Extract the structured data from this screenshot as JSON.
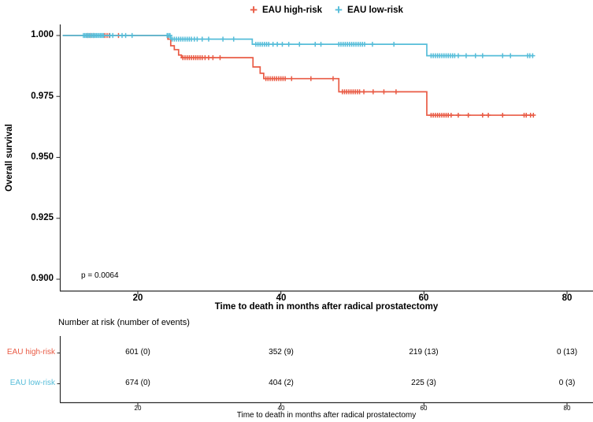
{
  "legend": {
    "items": [
      {
        "label": "EAU high-risk",
        "symbol": "+",
        "color": "#E95B45"
      },
      {
        "label": "EAU low-risk",
        "symbol": "+",
        "color": "#56BDD9"
      }
    ]
  },
  "chart_data": {
    "type": "line",
    "subtype": "kaplan-meier-step",
    "title": "",
    "xlabel": "Time to death in months after radical prostatectomy",
    "ylabel": "Overall survival",
    "xlim": [
      9,
      84
    ],
    "ylim": [
      0.896,
      1.004
    ],
    "x_ticks": [
      20,
      40,
      60,
      80
    ],
    "y_ticks": [
      "1.000",
      "0.975",
      "0.950",
      "0.925",
      "0.900"
    ],
    "grid": "off",
    "legend_position": "top",
    "p_value": "p = 0.0064",
    "series": [
      {
        "name": "EAU high-risk",
        "color": "#E95B45",
        "steps": [
          [
            9.5,
            1.0
          ],
          [
            24.2,
            0.9985
          ],
          [
            24.6,
            0.9958
          ],
          [
            25.1,
            0.9942
          ],
          [
            25.7,
            0.992
          ],
          [
            26.1,
            0.9909
          ],
          [
            36.1,
            0.9871
          ],
          [
            37.1,
            0.9845
          ],
          [
            37.6,
            0.9823
          ],
          [
            48.1,
            0.9769
          ],
          [
            60.4,
            0.9673
          ]
        ],
        "end": 75.3,
        "censor_times": [
          13.0,
          13.4,
          13.8,
          15.4,
          15.7,
          16.0,
          17.3,
          26.3,
          26.6,
          26.9,
          27.2,
          27.5,
          27.8,
          28.1,
          28.4,
          28.7,
          29.0,
          29.4,
          29.9,
          30.5,
          31.5,
          37.9,
          38.2,
          38.5,
          38.8,
          39.1,
          39.4,
          39.7,
          40.0,
          40.3,
          40.6,
          41.5,
          44.2,
          47.3,
          48.6,
          48.9,
          49.2,
          49.5,
          49.8,
          50.1,
          50.4,
          50.7,
          51.0,
          51.6,
          52.9,
          54.4,
          56.1,
          61.0,
          61.3,
          61.6,
          61.9,
          62.2,
          62.5,
          62.8,
          63.1,
          63.4,
          63.8,
          64.8,
          66.2,
          68.2,
          69.0,
          71.0,
          74.0,
          74.3,
          74.9,
          75.3
        ]
      },
      {
        "name": "EAU low-risk",
        "color": "#56BDD9",
        "steps": [
          [
            9.5,
            1.0
          ],
          [
            24.6,
            0.9985
          ],
          [
            36.0,
            0.9964
          ],
          [
            60.4,
            0.9917
          ]
        ],
        "end": 75.3,
        "censor_times": [
          12.4,
          12.6,
          12.8,
          13.0,
          13.2,
          13.4,
          13.6,
          13.8,
          14.0,
          14.2,
          14.4,
          14.6,
          14.8,
          15.0,
          15.2,
          16.1,
          16.5,
          17.8,
          18.3,
          19.2,
          24.1,
          24.3,
          24.5,
          24.8,
          25.1,
          25.4,
          25.7,
          26.0,
          26.3,
          26.6,
          26.9,
          27.2,
          27.5,
          27.9,
          28.3,
          29.0,
          29.9,
          31.9,
          33.4,
          36.5,
          36.8,
          37.1,
          37.4,
          37.7,
          38.0,
          38.3,
          38.9,
          39.5,
          40.2,
          41.1,
          42.6,
          44.8,
          45.6,
          48.1,
          48.4,
          48.7,
          49.0,
          49.3,
          49.6,
          49.9,
          50.2,
          50.5,
          50.8,
          51.1,
          51.4,
          51.7,
          52.8,
          55.8,
          61.0,
          61.3,
          61.6,
          61.9,
          62.2,
          62.5,
          62.8,
          63.1,
          63.4,
          63.7,
          64.0,
          64.3,
          64.8,
          65.9,
          67.2,
          68.2,
          71.0,
          72.1,
          74.5,
          74.8,
          75.2
        ]
      }
    ]
  },
  "risk_table": {
    "title": "Number at risk (number of events)",
    "xlabel": "Time to death in months after radical prostatectomy",
    "x_ticks": [
      20,
      40,
      60,
      80
    ],
    "rows": [
      {
        "label": "EAU high-risk",
        "color": "#E95B45",
        "values": [
          "601 (0)",
          "352 (9)",
          "219 (13)",
          "0 (13)"
        ]
      },
      {
        "label": "EAU low-risk",
        "color": "#56BDD9",
        "values": [
          "674 (0)",
          "404 (2)",
          "225 (3)",
          "0 (3)"
        ]
      }
    ]
  }
}
